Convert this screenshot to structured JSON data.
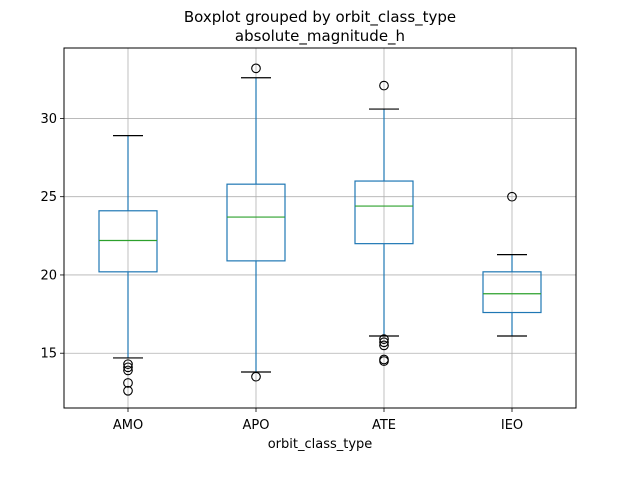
{
  "chart_data": {
    "type": "boxplot",
    "title": "Boxplot grouped by orbit_class_type",
    "subtitle": "absolute_magnitude_h",
    "xlabel": "orbit_class_type",
    "ylabel": "",
    "categories": [
      "AMO",
      "APO",
      "ATE",
      "IEO"
    ],
    "ylim": [
      11.5,
      34.5
    ],
    "yticks": [
      15,
      20,
      25,
      30
    ],
    "grid": true,
    "legend": "none",
    "colors": {
      "box": "#1f77b4",
      "median": "#2ca02c",
      "grid": "#b0b0b0",
      "frame": "#000000"
    },
    "boxes": [
      {
        "category": "AMO",
        "whisker_low": 14.7,
        "q1": 20.2,
        "median": 22.2,
        "q3": 24.1,
        "whisker_high": 28.9,
        "outliers": [
          14.3,
          14.1,
          13.9,
          13.1,
          12.6
        ]
      },
      {
        "category": "APO",
        "whisker_low": 13.8,
        "q1": 20.9,
        "median": 23.7,
        "q3": 25.8,
        "whisker_high": 32.6,
        "outliers": [
          13.5,
          33.2
        ]
      },
      {
        "category": "ATE",
        "whisker_low": 16.1,
        "q1": 22.0,
        "median": 24.4,
        "q3": 26.0,
        "whisker_high": 30.6,
        "outliers": [
          32.1,
          15.9,
          15.7,
          15.5,
          14.6,
          14.5
        ]
      },
      {
        "category": "IEO",
        "whisker_low": 16.1,
        "q1": 17.6,
        "median": 18.8,
        "q3": 20.2,
        "whisker_high": 21.3,
        "outliers": [
          25.0
        ]
      }
    ]
  }
}
